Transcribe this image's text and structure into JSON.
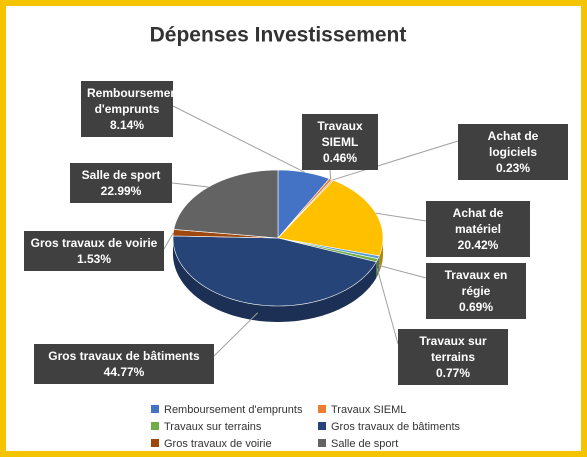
{
  "chart_data": {
    "type": "pie3d",
    "title": "Dépenses Investissement",
    "categories": [
      "Remboursement d'emprunts",
      "Travaux SIEML",
      "Achat de logiciels",
      "Achat de matériel",
      "Travaux en régie",
      "Travaux sur terrains",
      "Gros travaux de bâtiments",
      "Gros travaux de voirie",
      "Salle de sport"
    ],
    "values": [
      8.14,
      0.46,
      0.23,
      20.42,
      0.69,
      0.77,
      44.77,
      1.53,
      22.99
    ],
    "value_labels": [
      "8.14%",
      "0.46%",
      "0.23%",
      "20.42%",
      "0.69%",
      "0.77%",
      "44.77%",
      "1.53%",
      "22.99%"
    ],
    "colors": [
      "#4472c4",
      "#ed7d31",
      "#a5a5a5",
      "#ffc000",
      "#5b9bd5",
      "#70ad47",
      "#264478",
      "#9e480e",
      "#636363"
    ],
    "legend": [
      {
        "name": "Remboursement d'emprunts",
        "color": "#4472c4"
      },
      {
        "name": "Travaux SIEML",
        "color": "#ed7d31"
      },
      {
        "name": "Travaux sur terrains",
        "color": "#70ad47"
      },
      {
        "name": "Gros travaux de bâtiments",
        "color": "#264478"
      },
      {
        "name": "Gros travaux de voirie",
        "color": "#9e480e"
      },
      {
        "name": "Salle de sport",
        "color": "#636363"
      }
    ]
  }
}
